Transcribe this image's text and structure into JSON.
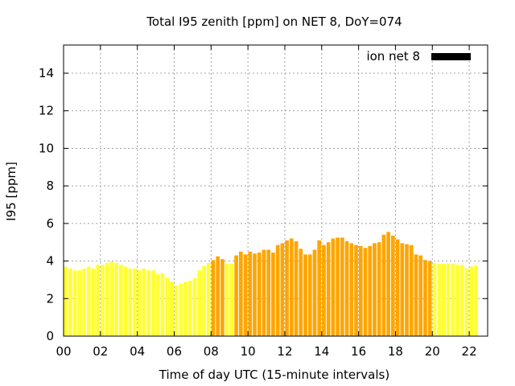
{
  "chart_data": {
    "type": "bar",
    "title": "Total I95 zenith [ppm] on NET 8, DoY=074",
    "xlabel": "Time of day UTC (15-minute intervals)",
    "ylabel": "I95 [ppm]",
    "xlim": [
      0,
      23
    ],
    "ylim": [
      0,
      15.5
    ],
    "x_ticks": [
      "00",
      "02",
      "04",
      "06",
      "08",
      "10",
      "12",
      "14",
      "16",
      "18",
      "20",
      "22"
    ],
    "y_ticks": [
      "0",
      "2",
      "4",
      "6",
      "8",
      "10",
      "12",
      "14"
    ],
    "grid": true,
    "legend": {
      "position": "top-right",
      "entries": [
        {
          "label": "ion net 8",
          "color": "#000000"
        }
      ]
    },
    "colors": {
      "low": "#ffff33",
      "high": "#ffa500",
      "threshold": 4.0
    },
    "bar_interval_hours": 0.25,
    "values": [
      3.7,
      3.6,
      3.5,
      3.5,
      3.6,
      3.7,
      3.6,
      3.8,
      3.8,
      3.9,
      3.95,
      3.9,
      3.8,
      3.7,
      3.6,
      3.6,
      3.5,
      3.6,
      3.5,
      3.5,
      3.3,
      3.35,
      3.1,
      2.9,
      2.7,
      2.8,
      2.9,
      2.95,
      3.1,
      3.5,
      3.75,
      3.9,
      4.05,
      4.25,
      4.1,
      3.85,
      3.85,
      4.3,
      4.5,
      4.35,
      4.5,
      4.4,
      4.45,
      4.6,
      4.6,
      4.45,
      4.85,
      4.95,
      5.1,
      5.2,
      5.05,
      4.65,
      4.35,
      4.35,
      4.6,
      5.1,
      4.85,
      5.0,
      5.2,
      5.25,
      5.25,
      5.05,
      4.95,
      4.85,
      4.8,
      4.7,
      4.8,
      4.95,
      5.0,
      5.4,
      5.55,
      5.35,
      5.15,
      4.95,
      4.9,
      4.85,
      4.35,
      4.3,
      4.05,
      4.0,
      3.9,
      3.85,
      3.85,
      3.85,
      3.85,
      3.8,
      3.8,
      3.6,
      3.7,
      3.75
    ]
  }
}
